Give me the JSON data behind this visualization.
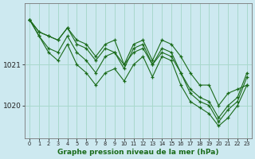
{
  "title": "Graphe pression niveau de la mer (hPa)",
  "background_color": "#cde9f0",
  "grid_color": "#a8d8cc",
  "line_color": "#1a6b1a",
  "marker_color": "#1a6b1a",
  "xlim": [
    -0.5,
    23.5
  ],
  "ylim": [
    1019.2,
    1022.5
  ],
  "yticks": [
    1020,
    1021
  ],
  "xticks": [
    0,
    1,
    2,
    3,
    4,
    5,
    6,
    7,
    8,
    9,
    10,
    11,
    12,
    13,
    14,
    15,
    16,
    17,
    18,
    19,
    20,
    21,
    22,
    23
  ],
  "series": [
    [
      1022.1,
      1021.8,
      1021.7,
      1021.6,
      1021.9,
      1021.6,
      1021.5,
      1021.2,
      1021.5,
      1021.6,
      1021.0,
      1021.5,
      1021.6,
      1021.1,
      1021.6,
      1021.5,
      1021.2,
      1020.8,
      1020.5,
      1020.5,
      1020.0,
      1020.3,
      1020.4,
      1020.5
    ],
    [
      1022.1,
      1021.8,
      1021.7,
      1021.6,
      1021.9,
      1021.5,
      1021.4,
      1021.1,
      1021.4,
      1021.3,
      1021.0,
      1021.3,
      1021.4,
      1021.0,
      1021.3,
      1021.2,
      1020.8,
      1020.4,
      1020.2,
      1020.1,
      1019.7,
      1020.0,
      1020.2,
      1020.8
    ],
    [
      1022.1,
      1021.7,
      1021.4,
      1021.3,
      1021.7,
      1021.3,
      1021.1,
      1020.8,
      1021.2,
      1021.3,
      1020.9,
      1021.4,
      1021.5,
      1021.0,
      1021.4,
      1021.3,
      1020.8,
      1020.3,
      1020.1,
      1020.0,
      1019.6,
      1019.9,
      1020.1,
      1020.7
    ],
    [
      1022.1,
      1021.7,
      1021.3,
      1021.1,
      1021.5,
      1021.0,
      1020.8,
      1020.5,
      1020.8,
      1020.9,
      1020.6,
      1021.0,
      1021.2,
      1020.7,
      1021.2,
      1021.1,
      1020.5,
      1020.1,
      1019.95,
      1019.8,
      1019.5,
      1019.7,
      1020.0,
      1020.5
    ]
  ]
}
